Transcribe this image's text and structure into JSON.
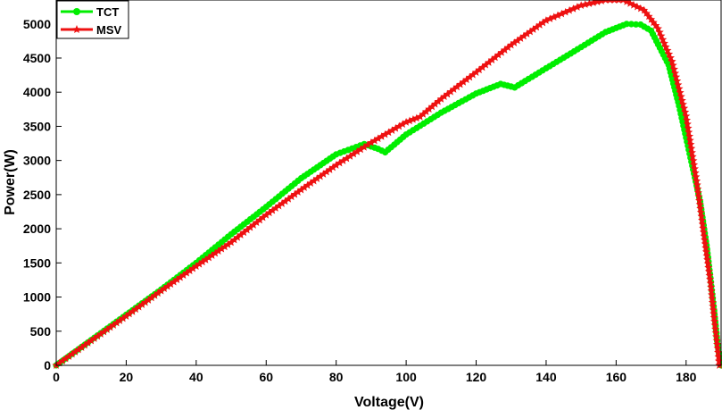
{
  "chart_data": {
    "type": "line",
    "xlabel": "Voltage(V)",
    "ylabel": "Power(W)",
    "xlim": [
      0,
      190
    ],
    "ylim": [
      0,
      5350
    ],
    "xticks": [
      0,
      20,
      40,
      60,
      80,
      100,
      120,
      140,
      160,
      180
    ],
    "yticks": [
      0,
      500,
      1000,
      1500,
      2000,
      2500,
      3000,
      3500,
      4000,
      4500,
      5000
    ],
    "grid": false,
    "legend_position": "top-left",
    "series": [
      {
        "name": "TCT",
        "color": "#00ee00",
        "marker": "circle",
        "points": [
          [
            0,
            0
          ],
          [
            10,
            370
          ],
          [
            20,
            740
          ],
          [
            30,
            1110
          ],
          [
            40,
            1500
          ],
          [
            50,
            1920
          ],
          [
            60,
            2320
          ],
          [
            70,
            2740
          ],
          [
            80,
            3090
          ],
          [
            88,
            3240
          ],
          [
            92,
            3170
          ],
          [
            94,
            3120
          ],
          [
            100,
            3380
          ],
          [
            110,
            3700
          ],
          [
            120,
            3980
          ],
          [
            127,
            4120
          ],
          [
            131,
            4070
          ],
          [
            140,
            4350
          ],
          [
            150,
            4660
          ],
          [
            157,
            4880
          ],
          [
            163,
            5000
          ],
          [
            167,
            4990
          ],
          [
            170,
            4900
          ],
          [
            175,
            4400
          ],
          [
            178,
            3800
          ],
          [
            181,
            3100
          ],
          [
            184,
            2400
          ],
          [
            186,
            1700
          ],
          [
            188,
            800
          ],
          [
            189,
            300
          ],
          [
            190,
            0
          ]
        ]
      },
      {
        "name": "MSV",
        "color": "#ee1111",
        "marker": "star",
        "points": [
          [
            0,
            0
          ],
          [
            10,
            360
          ],
          [
            20,
            720
          ],
          [
            30,
            1090
          ],
          [
            40,
            1450
          ],
          [
            50,
            1800
          ],
          [
            60,
            2200
          ],
          [
            70,
            2570
          ],
          [
            80,
            2930
          ],
          [
            90,
            3260
          ],
          [
            100,
            3560
          ],
          [
            104,
            3640
          ],
          [
            110,
            3900
          ],
          [
            120,
            4290
          ],
          [
            130,
            4690
          ],
          [
            140,
            5050
          ],
          [
            150,
            5270
          ],
          [
            157,
            5350
          ],
          [
            162,
            5350
          ],
          [
            168,
            5200
          ],
          [
            172,
            4930
          ],
          [
            176,
            4450
          ],
          [
            180,
            3650
          ],
          [
            183,
            2700
          ],
          [
            185,
            1950
          ],
          [
            187,
            1200
          ],
          [
            188,
            700
          ],
          [
            189,
            250
          ],
          [
            189.5,
            0
          ]
        ]
      }
    ]
  }
}
